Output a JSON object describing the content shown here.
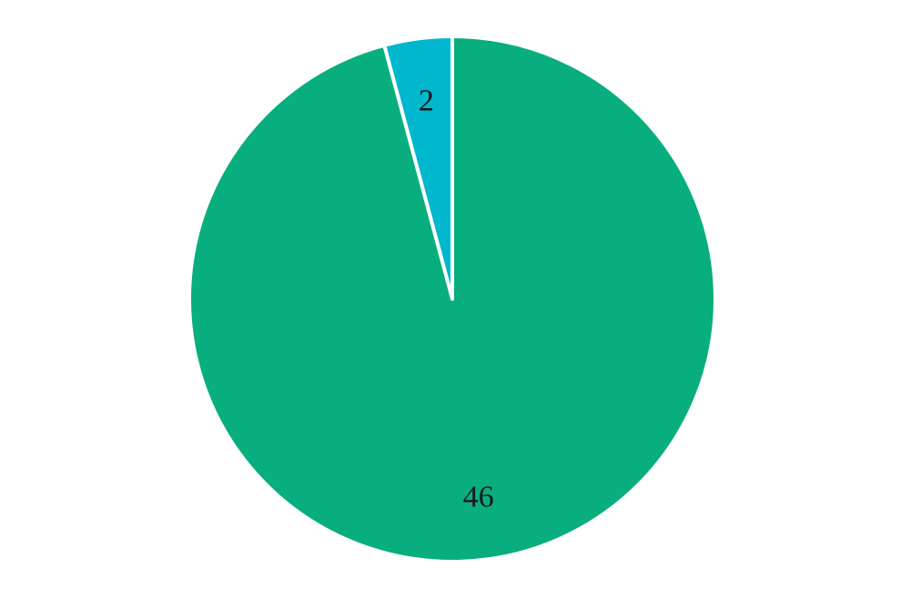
{
  "chart_data": {
    "type": "pie",
    "title": "",
    "legend": "none",
    "slices": [
      {
        "value": 2,
        "label": "2",
        "color": "#00b7cd"
      },
      {
        "value": 46,
        "label": "46",
        "color": "#08ae7e"
      }
    ],
    "start_angle_deg": 0,
    "direction": "counterclockwise",
    "slice_border_color": "#ffffff"
  }
}
